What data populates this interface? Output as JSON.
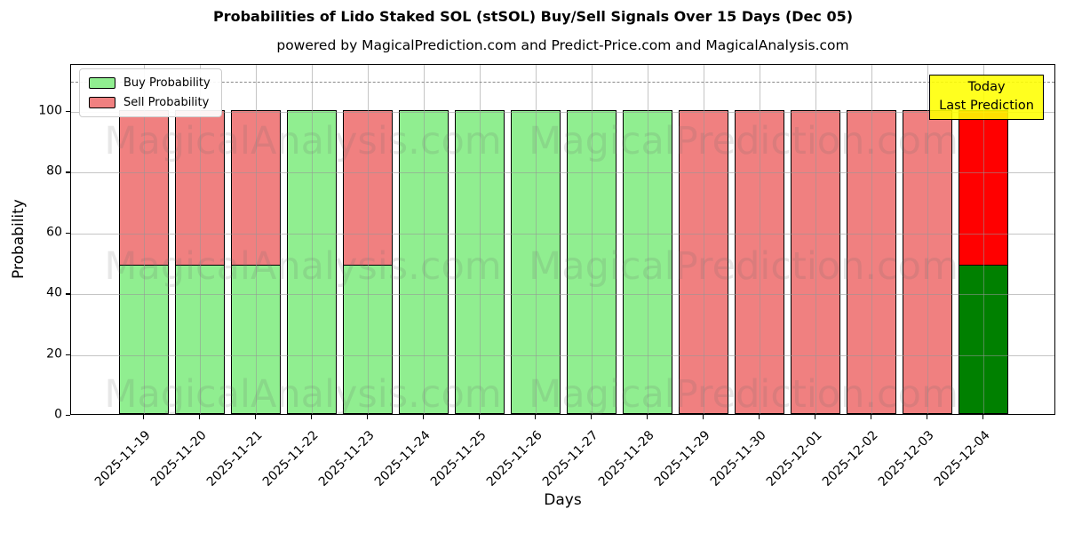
{
  "annotation": {
    "line1": "Today",
    "line2": "Last Prediction",
    "bg_color": "#ffff00",
    "border_color": "#000000"
  },
  "watermarks": [
    "MagicalAnalysis.com",
    "MagicalPrediction.com"
  ],
  "colors": {
    "buy": "#90ee90",
    "sell": "#f08080",
    "buy_today": "#008000",
    "sell_today": "#ff0000",
    "grid": "#969696",
    "dashed_line": "#8a8a8a",
    "annotation_bg": "#ffff00"
  },
  "chart_data": {
    "type": "bar",
    "stacked": true,
    "title": "Probabilities of Lido Staked SOL (stSOL) Buy/Sell Signals Over 15 Days (Dec 05)",
    "subtitle": "powered by MagicalPrediction.com and Predict-Price.com and MagicalAnalysis.com",
    "xlabel": "Days",
    "ylabel": "Probability",
    "categories": [
      "2025-11-19",
      "2025-11-20",
      "2025-11-21",
      "2025-11-22",
      "2025-11-23",
      "2025-11-24",
      "2025-11-25",
      "2025-11-26",
      "2025-11-27",
      "2025-11-28",
      "2025-11-29",
      "2025-11-30",
      "2025-12-01",
      "2025-12-02",
      "2025-12-03",
      "2025-12-04"
    ],
    "series": [
      {
        "name": "Buy Probability",
        "color": "#90ee90",
        "today_color": "#008000",
        "values": [
          49,
          49,
          49,
          100,
          49,
          100,
          100,
          100,
          100,
          100,
          0,
          0,
          0,
          0,
          0,
          49
        ]
      },
      {
        "name": "Sell Probability",
        "color": "#f08080",
        "today_color": "#ff0000",
        "values": [
          51,
          51,
          51,
          0,
          51,
          0,
          0,
          0,
          0,
          0,
          100,
          100,
          100,
          100,
          100,
          51
        ]
      }
    ],
    "today_index": 15,
    "yticks": [
      0,
      20,
      40,
      60,
      80,
      100
    ],
    "ylim": [
      0,
      115.5
    ],
    "xlim": [
      -1.3,
      16.3
    ],
    "bar_width_units": 0.9,
    "dashed_line_y": 110,
    "grid": true,
    "legend_position": "upper left"
  }
}
